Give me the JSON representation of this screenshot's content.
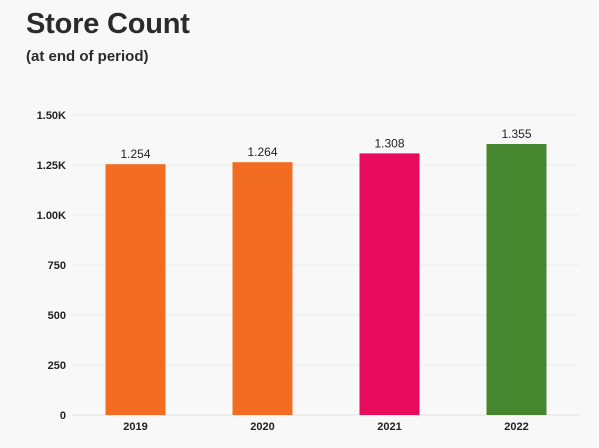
{
  "chart_data": {
    "type": "bar",
    "title": "Store Count",
    "subtitle": "(at end of period)",
    "xlabel": "",
    "ylabel": "",
    "categories": [
      "2019",
      "2020",
      "2021",
      "2022"
    ],
    "values": [
      1254,
      1264,
      1308,
      1355
    ],
    "data_labels": [
      "1.254",
      "1.264",
      "1.308",
      "1.355"
    ],
    "bar_colors": [
      "#f26d21",
      "#f26d21",
      "#e80a5b",
      "#46862e"
    ],
    "ylim": [
      0,
      1500
    ],
    "yticks": [
      0,
      250,
      500,
      750,
      1000,
      1250,
      1500
    ],
    "ytick_labels": [
      "0",
      "250",
      "500",
      "750",
      "1.00K",
      "1.25K",
      "1.50K"
    ],
    "grid": true,
    "legend": "none"
  }
}
